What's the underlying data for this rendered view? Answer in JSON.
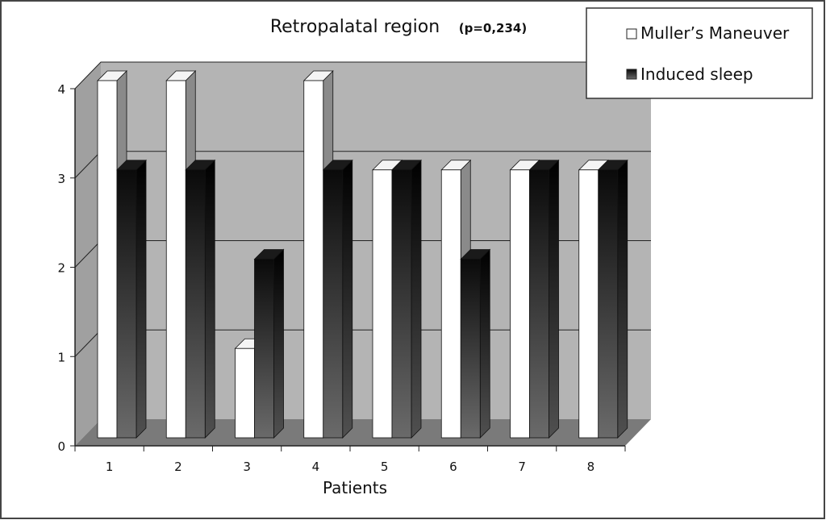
{
  "chart_data": {
    "type": "bar",
    "title": "Retropalatal region",
    "subtitle": "(p=0,234)",
    "xlabel": "Patients",
    "ylabel": "",
    "categories": [
      "1",
      "2",
      "3",
      "4",
      "5",
      "6",
      "7",
      "8"
    ],
    "y_ticks": [
      "0",
      "1",
      "2",
      "3",
      "4"
    ],
    "ylim": [
      0,
      4
    ],
    "grid": true,
    "three_d": true,
    "legend_position": "top-right",
    "series": [
      {
        "name": "Muller’s Maneuver",
        "color": "#ffffff",
        "values": [
          4,
          4,
          1,
          4,
          3,
          3,
          3,
          3
        ]
      },
      {
        "name": "Induced sleep",
        "color": "#222222",
        "values": [
          3,
          3,
          2,
          3,
          3,
          2,
          3,
          3
        ]
      }
    ],
    "colors": {
      "back_wall": "#b4b4b4",
      "floor": "#7a7a7a",
      "side_wall": "#a0a0a0"
    }
  }
}
